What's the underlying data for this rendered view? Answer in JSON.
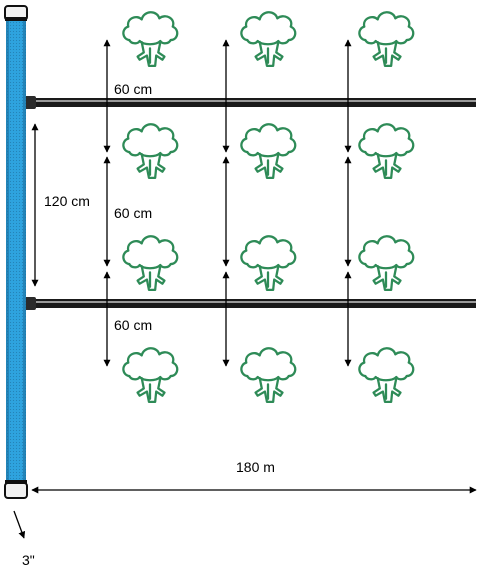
{
  "labels": {
    "row_spacing_top": "60 cm",
    "row_spacing_middle": "60 cm",
    "row_spacing_bottom": "60 cm",
    "lateral_spacing": "120 cm",
    "lateral_length": "180 m",
    "main_pipe_size": "3\""
  },
  "diagram": {
    "plant_icon": "broccoli-icon",
    "plant_rows": 4,
    "plant_columns": 3,
    "lateral_lines": 2,
    "colors": {
      "main_pipe": "#2ea3df",
      "main_pipe_dark": "#1d6f9e",
      "plant_stroke": "#2e8b57",
      "lateral_line": "#1a1a1a",
      "arrow": "#000000"
    }
  }
}
